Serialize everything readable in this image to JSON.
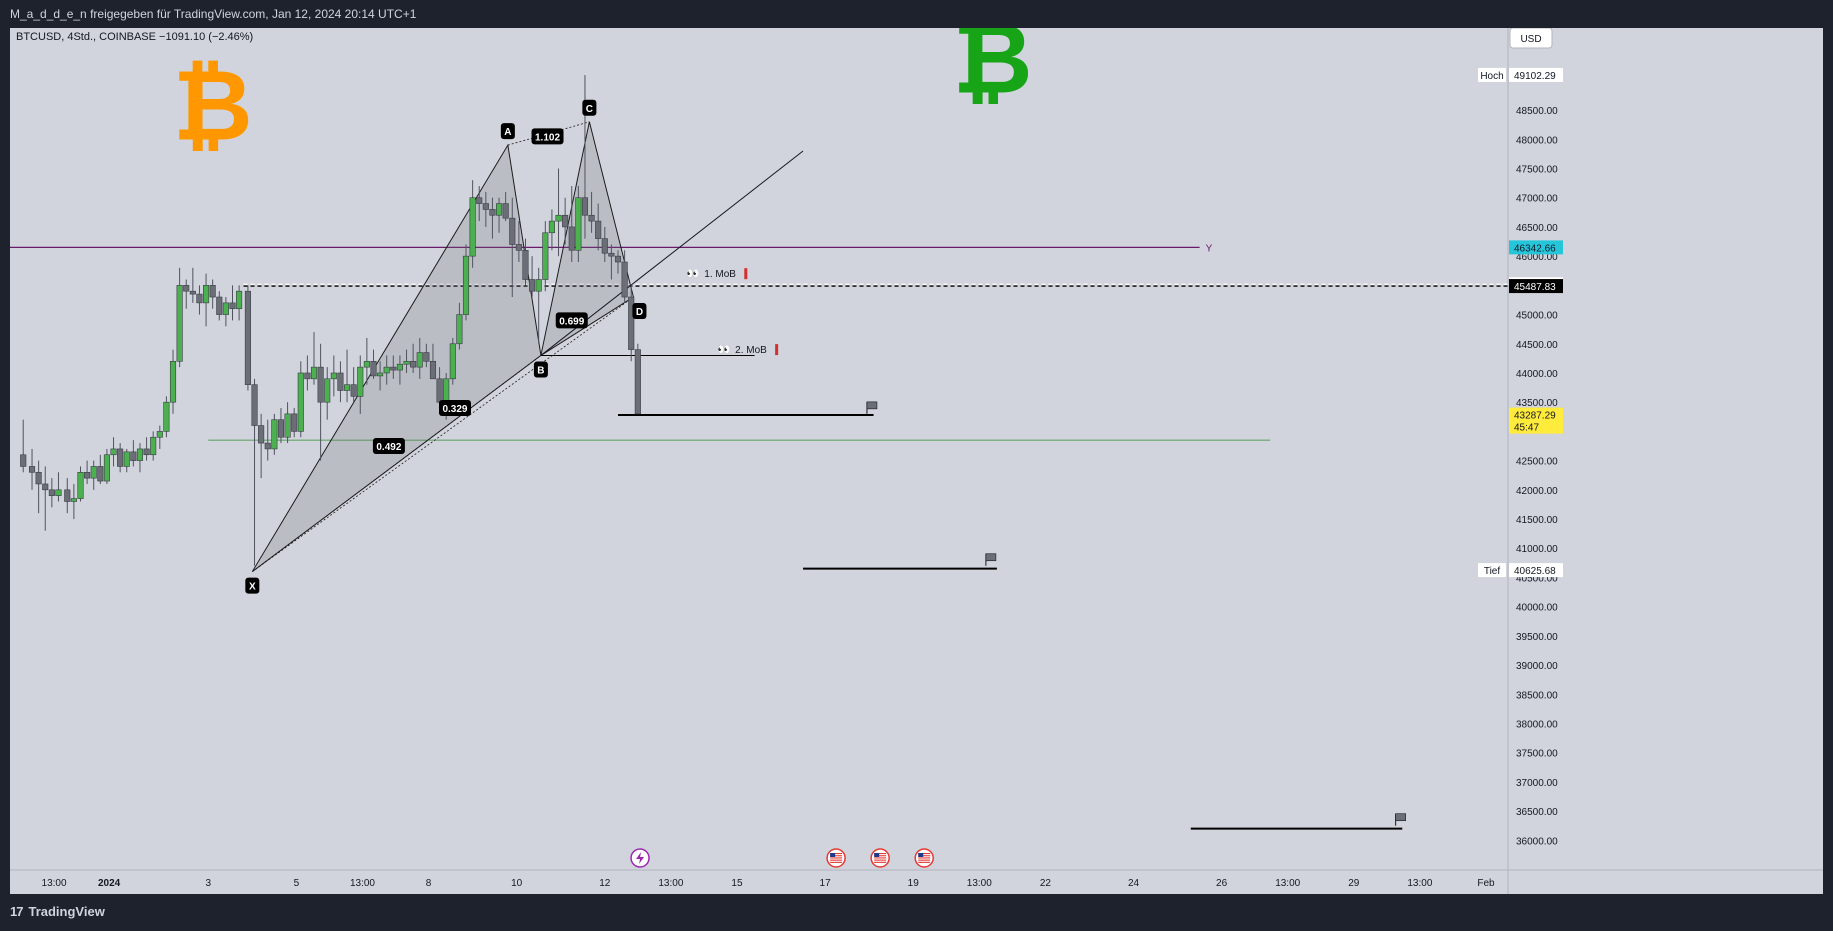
{
  "header": {
    "share_text": "M_a_d_d_e_n freigegeben für TradingView.com, Jan 12, 2024 20:14 UTC+1"
  },
  "footer": {
    "brand": "TradingView",
    "brand_mark": "17"
  },
  "chart_data": {
    "type": "candlestick",
    "symbol_line": "BTCUSD, 4Std., COINBASE  −1091.10 (−2.46%)",
    "currency": "USD",
    "ylim": [
      35800,
      49700
    ],
    "price_ticks": [
      48500,
      48000,
      47500,
      47000,
      46500,
      46000,
      45000,
      44500,
      44000,
      43500,
      42500,
      42000,
      41500,
      41000,
      40500,
      40000,
      39500,
      39000,
      38500,
      38000,
      37500,
      37000,
      36500,
      36000
    ],
    "time_ticks": [
      {
        "label": "13:00",
        "x": 0.0
      },
      {
        "label": "2024",
        "x": 1.25
      },
      {
        "label": "3",
        "x": 3.5
      },
      {
        "label": "5",
        "x": 5.5
      },
      {
        "label": "13:00",
        "x": 7.0
      },
      {
        "label": "8",
        "x": 8.5
      },
      {
        "label": "10",
        "x": 10.5
      },
      {
        "label": "12",
        "x": 12.5
      },
      {
        "label": "13:00",
        "x": 14.0
      },
      {
        "label": "15",
        "x": 15.5
      },
      {
        "label": "17",
        "x": 17.5
      },
      {
        "label": "19",
        "x": 19.5
      },
      {
        "label": "13:00",
        "x": 21.0
      },
      {
        "label": "22",
        "x": 22.5
      },
      {
        "label": "24",
        "x": 24.5
      },
      {
        "label": "26",
        "x": 26.5
      },
      {
        "label": "13:00",
        "x": 28.0
      },
      {
        "label": "29",
        "x": 29.5
      },
      {
        "label": "13:00",
        "x": 31.0
      },
      {
        "label": "Feb",
        "x": 32.5
      }
    ],
    "xlim": [
      -1.0,
      33.0
    ],
    "bar_step": 0.1667,
    "candles": [
      [
        -0.7,
        42600,
        43200,
        42300,
        42400
      ],
      [
        -0.5,
        42400,
        42700,
        42000,
        42300
      ],
      [
        -0.35,
        42300,
        42500,
        41600,
        42100
      ],
      [
        -0.2,
        42100,
        42400,
        41300,
        42000
      ],
      [
        -0.05,
        42000,
        42200,
        41700,
        41900
      ],
      [
        0.1,
        41900,
        42300,
        41800,
        42000
      ],
      [
        0.3,
        42000,
        42200,
        41600,
        41800
      ],
      [
        0.45,
        41800,
        42100,
        41500,
        41850
      ],
      [
        0.6,
        41850,
        42400,
        41800,
        42300
      ],
      [
        0.75,
        42300,
        42500,
        42100,
        42200
      ],
      [
        0.9,
        42200,
        42500,
        42000,
        42400
      ],
      [
        1.05,
        42400,
        42600,
        42100,
        42150
      ],
      [
        1.2,
        42150,
        42700,
        42100,
        42600
      ],
      [
        1.35,
        42600,
        42900,
        42400,
        42700
      ],
      [
        1.5,
        42700,
        42800,
        42300,
        42400
      ],
      [
        1.65,
        42400,
        42700,
        42300,
        42650
      ],
      [
        1.8,
        42650,
        42850,
        42400,
        42500
      ],
      [
        1.95,
        42500,
        42800,
        42300,
        42700
      ],
      [
        2.1,
        42700,
        42900,
        42500,
        42600
      ],
      [
        2.25,
        42600,
        43000,
        42500,
        42900
      ],
      [
        2.4,
        42900,
        43100,
        42700,
        43000
      ],
      [
        2.55,
        43000,
        43600,
        42900,
        43500
      ],
      [
        2.7,
        43500,
        44400,
        43300,
        44200
      ],
      [
        2.85,
        44200,
        45800,
        44100,
        45500
      ],
      [
        3.0,
        45500,
        45600,
        45100,
        45400
      ],
      [
        3.15,
        45400,
        45800,
        45200,
        45350
      ],
      [
        3.3,
        45350,
        45500,
        45000,
        45200
      ],
      [
        3.45,
        45200,
        45700,
        44800,
        45500
      ],
      [
        3.6,
        45500,
        45600,
        45100,
        45300
      ],
      [
        3.75,
        45300,
        45400,
        44900,
        45000
      ],
      [
        3.9,
        45000,
        45300,
        44800,
        45200
      ],
      [
        4.05,
        45200,
        45500,
        44900,
        45100
      ],
      [
        4.2,
        45100,
        45500,
        44900,
        45400
      ],
      [
        4.4,
        45400,
        45500,
        43700,
        43800
      ],
      [
        4.55,
        43800,
        43900,
        40700,
        43100
      ],
      [
        4.7,
        43100,
        43300,
        42200,
        42800
      ],
      [
        4.85,
        42800,
        43200,
        42500,
        42700
      ],
      [
        5.0,
        42700,
        43300,
        42600,
        43200
      ],
      [
        5.15,
        43200,
        43400,
        42800,
        42900
      ],
      [
        5.3,
        42900,
        43500,
        42800,
        43300
      ],
      [
        5.45,
        43300,
        43400,
        42900,
        43000
      ],
      [
        5.6,
        43000,
        44200,
        42900,
        44000
      ],
      [
        5.75,
        44000,
        44300,
        43700,
        43900
      ],
      [
        5.9,
        43900,
        44700,
        43800,
        44100
      ],
      [
        6.05,
        44100,
        44500,
        42500,
        43500
      ],
      [
        6.2,
        43500,
        44100,
        43200,
        43900
      ],
      [
        6.35,
        43900,
        44300,
        43600,
        44000
      ],
      [
        6.5,
        44000,
        44200,
        43500,
        43700
      ],
      [
        6.65,
        43700,
        44400,
        43500,
        43800
      ],
      [
        6.8,
        43800,
        44100,
        43500,
        43600
      ],
      [
        6.95,
        43600,
        44300,
        43300,
        44100
      ],
      [
        7.1,
        44100,
        44600,
        43800,
        44200
      ],
      [
        7.25,
        44200,
        44400,
        43900,
        43950
      ],
      [
        7.4,
        43950,
        44200,
        43700,
        44000
      ],
      [
        7.55,
        44000,
        44300,
        43800,
        44100
      ],
      [
        7.7,
        44100,
        44300,
        43900,
        44050
      ],
      [
        7.85,
        44050,
        44300,
        43800,
        44150
      ],
      [
        8.0,
        44150,
        44400,
        44000,
        44200
      ],
      [
        8.15,
        44200,
        44500,
        44000,
        44100
      ],
      [
        8.3,
        44100,
        44600,
        43900,
        44350
      ],
      [
        8.45,
        44350,
        44500,
        44100,
        44200
      ],
      [
        8.6,
        44200,
        44500,
        43900,
        43900
      ],
      [
        8.75,
        43900,
        44100,
        43400,
        43500
      ],
      [
        8.9,
        43500,
        44000,
        43200,
        43900
      ],
      [
        9.05,
        43900,
        44600,
        43800,
        44500
      ],
      [
        9.2,
        44500,
        45200,
        44400,
        45000
      ],
      [
        9.35,
        45000,
        46200,
        44900,
        46000
      ],
      [
        9.5,
        46000,
        47300,
        45800,
        47000
      ],
      [
        9.65,
        47000,
        47200,
        46600,
        46900
      ],
      [
        9.8,
        46900,
        47100,
        46500,
        46800
      ],
      [
        9.95,
        46800,
        47000,
        46300,
        46700
      ],
      [
        10.1,
        46700,
        47000,
        46400,
        46900
      ],
      [
        10.25,
        46900,
        47100,
        46600,
        46650
      ],
      [
        10.4,
        46650,
        47000,
        45300,
        46200
      ],
      [
        10.55,
        46200,
        46600,
        45900,
        46100
      ],
      [
        10.7,
        46100,
        46300,
        45500,
        45600
      ],
      [
        10.85,
        45600,
        46000,
        45300,
        45400
      ],
      [
        11.0,
        45400,
        45800,
        44500,
        45600
      ],
      [
        11.15,
        45600,
        46600,
        45400,
        46400
      ],
      [
        11.3,
        46400,
        46800,
        46100,
        46600
      ],
      [
        11.45,
        46600,
        47500,
        46000,
        46700
      ],
      [
        11.6,
        46700,
        47000,
        46200,
        46500
      ],
      [
        11.75,
        46500,
        47200,
        45900,
        46100
      ],
      [
        11.9,
        46100,
        47200,
        45900,
        47000
      ],
      [
        12.05,
        47000,
        49100,
        46300,
        46700
      ],
      [
        12.2,
        46700,
        47100,
        46400,
        46600
      ],
      [
        12.35,
        46600,
        46900,
        46100,
        46300
      ],
      [
        12.5,
        46300,
        46500,
        45900,
        46050
      ],
      [
        12.65,
        46050,
        46200,
        45600,
        46000
      ],
      [
        12.8,
        46000,
        46100,
        45700,
        45900
      ],
      [
        12.95,
        45900,
        46100,
        45200,
        45300
      ],
      [
        13.1,
        45300,
        45500,
        44200,
        44400
      ],
      [
        13.25,
        44400,
        44500,
        43300,
        43300
      ]
    ],
    "harmonic_pattern": {
      "points": [
        {
          "label": "X",
          "x": 4.5,
          "y": 40600
        },
        {
          "label": "A",
          "x": 10.3,
          "y": 47900
        },
        {
          "label": "B",
          "x": 11.05,
          "y": 44300
        },
        {
          "label": "C",
          "x": 12.15,
          "y": 48300
        },
        {
          "label": "D",
          "x": 13.15,
          "y": 45300
        }
      ],
      "ratios": [
        {
          "label": "1.102",
          "x": 11.2,
          "y": 48050
        },
        {
          "label": "0.699",
          "x": 11.75,
          "y": 44900
        },
        {
          "label": "0.329",
          "x": 9.1,
          "y": 43400
        },
        {
          "label": "0.492",
          "x": 7.6,
          "y": 42750
        }
      ]
    },
    "trend_line": {
      "x1": 11.05,
      "y1": 44300,
      "x2": 17.0,
      "y2": 47800
    },
    "levels": [
      {
        "price": 46150,
        "x1": -1.0,
        "x2": 26.0,
        "color": "#6a1a6a",
        "label": "Y"
      },
      {
        "price": 45519.32,
        "x1": 4.3,
        "x2": 33.0,
        "color": "#ffffff",
        "dashed": true
      },
      {
        "price": 45487.83,
        "x1": 4.3,
        "x2": 33.0,
        "color": "#000000",
        "dashed": true
      },
      {
        "price": 42850,
        "x1": 3.5,
        "x2": 27.6,
        "color": "#2e8b2e",
        "width": 0.8
      },
      {
        "price": 44300,
        "x1": 11.05,
        "x2": 15.9,
        "color": "#000000",
        "width": 1
      },
      {
        "price": 43280,
        "x1": 12.8,
        "x2": 18.6,
        "color": "#000000",
        "width": 2
      },
      {
        "price": 40650,
        "x1": 17.0,
        "x2": 21.4,
        "color": "#000000",
        "width": 2
      },
      {
        "price": 36200,
        "x1": 25.8,
        "x2": 30.6,
        "color": "#000000",
        "width": 2
      }
    ],
    "annotations": [
      {
        "text": "1. MoB",
        "x": 14.35,
        "y": 45640
      },
      {
        "text": "2. MoB",
        "x": 15.05,
        "y": 44340
      }
    ],
    "flags": [
      {
        "x": 18.45,
        "y": 43300
      },
      {
        "x": 21.15,
        "y": 40700
      },
      {
        "x": 30.45,
        "y": 36250
      }
    ],
    "price_labels": [
      {
        "side": "Hoch",
        "value": "49102.29",
        "price": 49102.29,
        "bg": "#ffffff",
        "fg": "#131722"
      },
      {
        "value": "46342.66",
        "price": 46150,
        "bg": "#26c6da",
        "fg": "#131722"
      },
      {
        "value": "45519.32",
        "price": 45519.32,
        "bg": "#ffffff",
        "fg": "#131722"
      },
      {
        "value": "45487.83",
        "price": 45487.83,
        "bg": "#000000",
        "fg": "#ffffff"
      },
      {
        "value": "43287.29",
        "sub": "45:47",
        "price": 43287.29,
        "bg": "#ffeb3b",
        "fg": "#131722"
      },
      {
        "side": "Tief",
        "value": "40625.68",
        "price": 40625.68,
        "bg": "#ffffff",
        "fg": "#131722"
      }
    ],
    "event_icons": [
      {
        "type": "lightning-icon",
        "x": 13.3
      },
      {
        "type": "us-flag-icon",
        "x": 17.75
      },
      {
        "type": "us-flag-icon",
        "x": 18.75
      },
      {
        "type": "us-flag-icon",
        "x": 19.75
      }
    ],
    "logos": [
      {
        "glyph": "₿",
        "color": "#ff9800",
        "x": 3.6,
        "price": 48000
      },
      {
        "glyph": "₿",
        "color": "#17a517",
        "x": 21.3,
        "price": 48800
      }
    ],
    "colors": {
      "up": "#4caf50",
      "down": "#6b6e76",
      "wick": "#50535e",
      "axis_text": "#131722"
    }
  }
}
